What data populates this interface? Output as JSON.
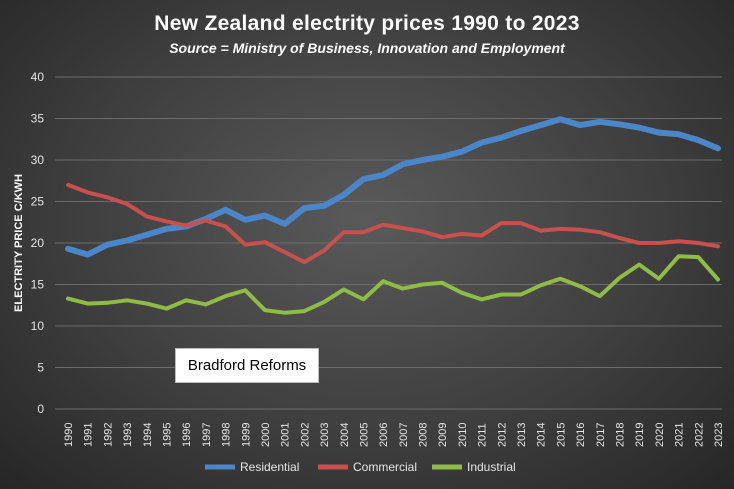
{
  "chart_data": {
    "type": "line",
    "title": "New Zealand electrity prices 1990 to 2023",
    "subtitle": "Source = Ministry of Business, Innovation and Employment",
    "xlabel": "",
    "ylabel": "ELECTRITY PRICE C/KWH",
    "ylim": [
      0,
      40
    ],
    "yticks": [
      "0",
      "5",
      "10",
      "15",
      "20",
      "25",
      "30",
      "35",
      "40"
    ],
    "grid": true,
    "legend": "bottom",
    "annotation": "Bradford Reforms",
    "x": [
      "1990",
      "1991",
      "1992",
      "1993",
      "1994",
      "1995",
      "1996",
      "1997",
      "1998",
      "1999",
      "2000",
      "2001",
      "2002",
      "2003",
      "2004",
      "2005",
      "2006",
      "2007",
      "2008",
      "2009",
      "2010",
      "2011",
      "2012",
      "2013",
      "2014",
      "2015",
      "2016",
      "2017",
      "2018",
      "2019",
      "2020",
      "2021",
      "2022",
      "2023"
    ],
    "series": [
      {
        "name": "Residential",
        "color": "#4a86c8",
        "values": [
          19.3,
          18.6,
          19.8,
          20.3,
          21.0,
          21.7,
          22.0,
          22.9,
          24.0,
          22.8,
          23.3,
          22.3,
          24.2,
          24.5,
          25.8,
          27.7,
          28.2,
          29.5,
          30.0,
          30.4,
          31.0,
          32.1,
          32.7,
          33.5,
          34.2,
          34.9,
          34.2,
          34.6,
          34.3,
          33.9,
          33.3,
          33.1,
          32.4,
          31.4
        ]
      },
      {
        "name": "Commercial",
        "color": "#c9504c",
        "values": [
          27.0,
          26.1,
          25.5,
          24.7,
          23.2,
          22.6,
          22.1,
          22.7,
          22.0,
          19.8,
          20.1,
          18.9,
          17.7,
          19.1,
          21.3,
          21.3,
          22.2,
          21.8,
          21.4,
          20.7,
          21.1,
          20.9,
          22.4,
          22.4,
          21.5,
          21.7,
          21.6,
          21.3,
          20.6,
          20.0,
          20.0,
          20.2,
          20.0,
          19.6
        ]
      },
      {
        "name": "Industrial",
        "color": "#8fbc45",
        "values": [
          13.3,
          12.7,
          12.8,
          13.1,
          12.7,
          12.1,
          13.1,
          12.6,
          13.6,
          14.3,
          11.9,
          11.6,
          11.8,
          12.9,
          14.4,
          13.2,
          15.4,
          14.5,
          15.0,
          15.2,
          14.0,
          13.2,
          13.8,
          13.8,
          14.9,
          15.7,
          14.8,
          13.6,
          15.8,
          17.4,
          15.7,
          18.4,
          18.3,
          15.6
        ]
      }
    ]
  }
}
